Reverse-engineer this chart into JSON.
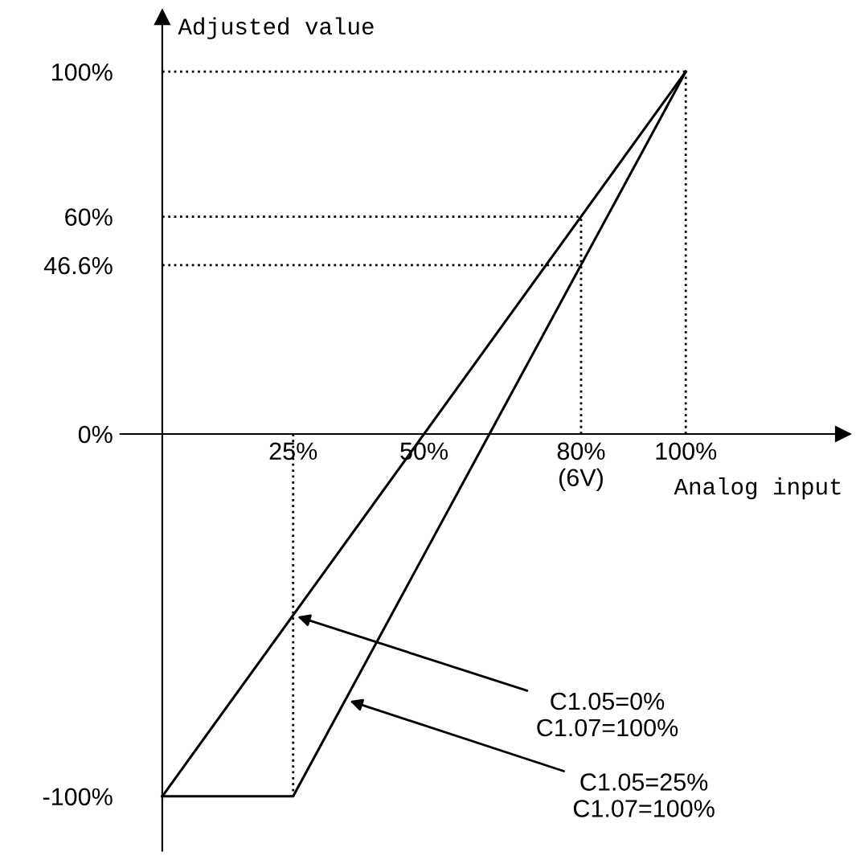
{
  "chart_data": {
    "type": "line",
    "xlabel": "Analog input",
    "ylabel": "Adjusted value",
    "xlim": [
      -8,
      130
    ],
    "ylim": [
      -115,
      115
    ],
    "xticks": [
      {
        "value": 25,
        "label": "25%"
      },
      {
        "value": 50,
        "label": "50%"
      },
      {
        "value": 80,
        "label": "80%\n(6V)"
      },
      {
        "value": 100,
        "label": "100%"
      }
    ],
    "yticks": [
      {
        "value": -100,
        "label": "-100%"
      },
      {
        "value": 0,
        "label": "0%"
      },
      {
        "value": 46.6,
        "label": "46.6%"
      },
      {
        "value": 60,
        "label": "60%"
      },
      {
        "value": 100,
        "label": "100%"
      }
    ],
    "grid": false,
    "legend": false,
    "series": [
      {
        "color": "#000000",
        "x": [
          0,
          100
        ],
        "values": [
          -100,
          100
        ],
        "line_style": "solid"
      },
      {
        "color": "#000000",
        "x": [
          0,
          25,
          100
        ],
        "values": [
          -100,
          -100,
          100
        ],
        "line_style": "solid"
      },
      {
        "color": "#000000",
        "x": [
          0,
          100
        ],
        "values": [
          100,
          100
        ],
        "line_style": "dotted"
      },
      {
        "color": "#000000",
        "x": [
          100,
          100
        ],
        "values": [
          0,
          100
        ],
        "line_style": "dotted"
      },
      {
        "color": "#000000",
        "x": [
          0,
          80
        ],
        "values": [
          60,
          60
        ],
        "line_style": "dotted"
      },
      {
        "color": "#000000",
        "x": [
          0,
          80
        ],
        "values": [
          46.6,
          46.6
        ],
        "line_style": "dotted"
      },
      {
        "color": "#000000",
        "x": [
          80,
          80
        ],
        "values": [
          0,
          60
        ],
        "line_style": "dotted"
      },
      {
        "color": "#000000",
        "x": [
          25,
          25
        ],
        "values": [
          0,
          -100
        ],
        "line_style": "dotted"
      }
    ],
    "annotations": [
      {
        "text": "C1.05=0%\nC1.07=100%",
        "x": 25,
        "y": -50
      },
      {
        "text": "C1.05=25%\nC1.07=100%",
        "x": 35,
        "y": -73.3
      }
    ]
  }
}
